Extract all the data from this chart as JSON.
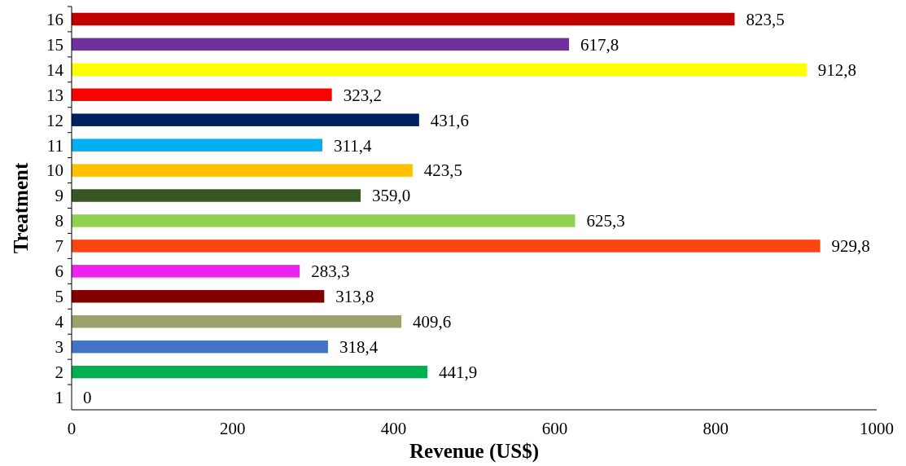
{
  "chart_data": {
    "type": "bar",
    "orientation": "horizontal",
    "xlabel": "Revenue (US$)",
    "ylabel": "Treatment",
    "categories": [
      "16",
      "15",
      "14",
      "13",
      "12",
      "11",
      "10",
      "9",
      "8",
      "7",
      "6",
      "5",
      "4",
      "3",
      "2",
      "1"
    ],
    "values": [
      823.5,
      617.8,
      912.8,
      323.2,
      431.6,
      311.4,
      423.5,
      359.0,
      625.3,
      929.8,
      283.3,
      313.8,
      409.6,
      318.4,
      441.9,
      0
    ],
    "value_labels": [
      "823,5",
      "617,8",
      "912,8",
      "323,2",
      "431,6",
      "311,4",
      "423,5",
      "359,0",
      "625,3",
      "929,8",
      "283,3",
      "313,8",
      "409,6",
      "318,4",
      "441,9",
      "0"
    ],
    "colors": [
      "#c00000",
      "#7030a0",
      "#ffff00",
      "#ff0000",
      "#002060",
      "#00b0f0",
      "#ffc000",
      "#375623",
      "#92d050",
      "#fc4513",
      "#ee22ee",
      "#800000",
      "#9da26a",
      "#4472c4",
      "#00b050",
      "#808080"
    ],
    "xlim": [
      0,
      1000
    ],
    "xticks": [
      0,
      200,
      400,
      600,
      800,
      1000
    ],
    "grid": false
  }
}
